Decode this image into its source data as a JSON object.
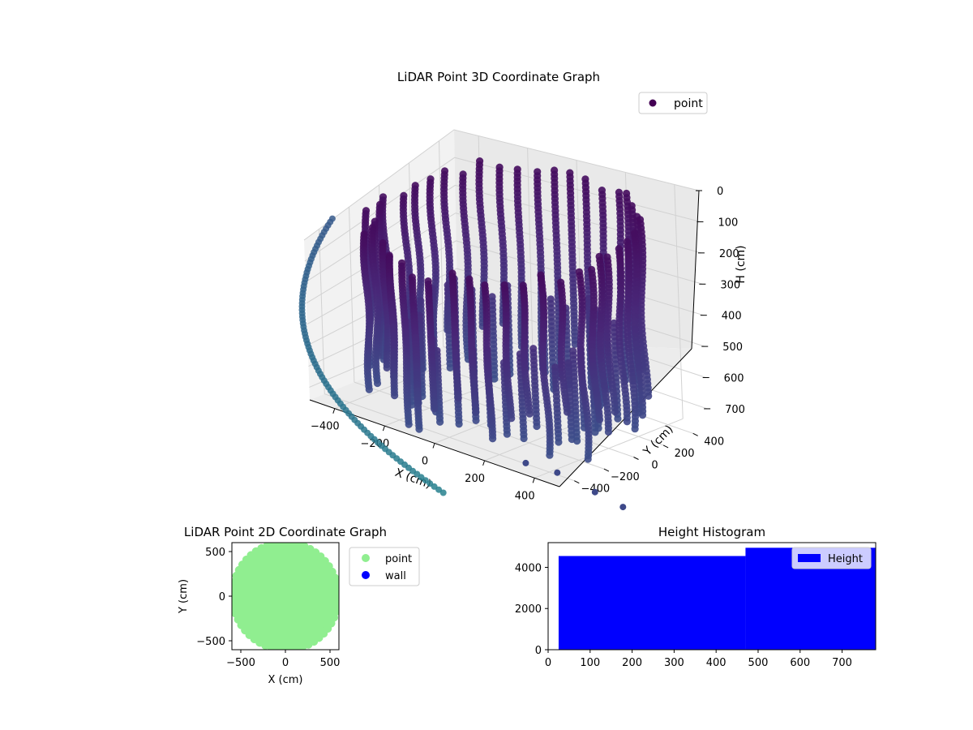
{
  "chart_data": [
    {
      "type": "scatter3d",
      "title": "LiDAR Point 3D Coordinate Graph",
      "xlabel": "X (cm)",
      "ylabel": "Y (cm)",
      "zlabel": "H (cm)",
      "x_ticks": [
        -400,
        -200,
        0,
        200,
        400
      ],
      "y_ticks": [
        -400,
        -200,
        0,
        200,
        400
      ],
      "z_ticks": [
        0,
        100,
        200,
        300,
        400,
        500,
        600,
        700
      ],
      "xlim": [
        -500,
        500
      ],
      "ylim": [
        -500,
        500
      ],
      "zlim": [
        0,
        760
      ],
      "z_inverted": true,
      "colormap": "viridis",
      "legend": {
        "entries": [
          {
            "label": "point",
            "color": "#440154"
          }
        ],
        "placement": "upper-right"
      },
      "grid": true,
      "data_description_ring_radius_cm": 470,
      "series": [
        {
          "name": "point"
        }
      ]
    },
    {
      "type": "scatter",
      "title": "LiDAR Point 2D Coordinate Graph",
      "xlabel": "X (cm)",
      "ylabel": "Y (cm)",
      "xlim": [
        -600,
        600
      ],
      "ylim": [
        -600,
        600
      ],
      "x_ticks": [
        -500,
        0,
        500
      ],
      "y_ticks": [
        500,
        0,
        -500
      ],
      "legend": {
        "entries": [
          {
            "label": "point",
            "color": "#90ee90"
          },
          {
            "label": "wall",
            "color": "#0000ff"
          }
        ],
        "placement": "outside-right"
      },
      "series": [
        {
          "name": "point",
          "color": "#90ee90",
          "shape": "filled-ellipse",
          "center": [
            0,
            0
          ],
          "radius_x": 580,
          "radius_y": 590
        },
        {
          "name": "wall",
          "color": "#0000ff",
          "points": []
        }
      ]
    },
    {
      "type": "bar",
      "subtype": "histogram",
      "title": "Height Histogram",
      "xlim": [
        0,
        780
      ],
      "ylim": [
        0,
        5200
      ],
      "x_ticks": [
        0,
        100,
        200,
        300,
        400,
        500,
        600,
        700
      ],
      "y_ticks": [
        0,
        2000,
        4000
      ],
      "color": "#0000ff",
      "legend": {
        "entries": [
          {
            "label": "Height",
            "color": "#0000ff"
          }
        ],
        "placement": "upper-right"
      },
      "bins": [
        {
          "from": 25,
          "to": 470,
          "count": 4550
        },
        {
          "from": 470,
          "to": 780,
          "count": 4950
        }
      ]
    }
  ]
}
